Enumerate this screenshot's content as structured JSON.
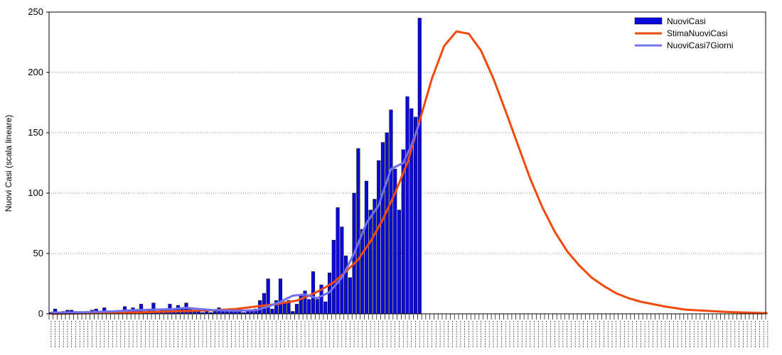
{
  "chart_data": {
    "type": "bar",
    "title": "",
    "ylabel": "Nuovi Casi (scala lineare)",
    "xlabel": "",
    "ylim": [
      0,
      250
    ],
    "yticks": [
      0,
      50,
      100,
      150,
      200,
      250
    ],
    "grid": true,
    "legend_position": "top-right",
    "x_count": 175,
    "legend": [
      {
        "name": "NuoviCasi",
        "color": "#0a0adc",
        "kind": "bar"
      },
      {
        "name": "StimaNuoviCasi",
        "color": "#f04a0e",
        "kind": "line"
      },
      {
        "name": "NuoviCasi7Giorni",
        "color": "#7070f0",
        "kind": "line"
      }
    ],
    "series": [
      {
        "name": "NuoviCasi",
        "type": "bar",
        "color": "#0a0adc",
        "values": [
          1,
          4,
          1,
          2,
          3,
          3,
          2,
          2,
          1,
          1,
          3,
          4,
          2,
          5,
          1,
          1,
          2,
          3,
          6,
          3,
          5,
          3,
          8,
          2,
          4,
          9,
          2,
          4,
          3,
          8,
          4,
          7,
          4,
          9,
          4,
          2,
          3,
          1,
          2,
          1,
          2,
          5,
          4,
          3,
          2,
          2,
          3,
          1,
          2,
          3,
          4,
          11,
          17,
          29,
          4,
          11,
          29,
          10,
          11,
          2,
          8,
          16,
          19,
          12,
          35,
          12,
          24,
          10,
          34,
          61,
          88,
          72,
          48,
          30,
          100,
          137,
          70,
          110,
          86,
          95,
          127,
          142,
          150,
          169,
          120,
          86,
          136,
          180,
          170,
          163,
          245
        ]
      },
      {
        "name": "StimaNuoviCasi",
        "type": "line",
        "color": "#f04a0e",
        "points": [
          [
            0,
            0
          ],
          [
            10,
            0.5
          ],
          [
            20,
            1
          ],
          [
            28,
            1.8
          ],
          [
            35,
            2.5
          ],
          [
            40,
            3
          ],
          [
            45,
            4
          ],
          [
            50,
            6
          ],
          [
            55,
            8
          ],
          [
            60,
            11
          ],
          [
            63,
            15
          ],
          [
            66,
            20
          ],
          [
            69,
            26
          ],
          [
            72,
            35
          ],
          [
            75,
            45
          ],
          [
            78,
            60
          ],
          [
            81,
            78
          ],
          [
            84,
            100
          ],
          [
            87,
            125
          ],
          [
            90,
            160
          ],
          [
            93,
            195
          ],
          [
            96,
            222
          ],
          [
            99,
            234
          ],
          [
            102,
            232
          ],
          [
            105,
            218
          ],
          [
            108,
            195
          ],
          [
            111,
            168
          ],
          [
            114,
            140
          ],
          [
            117,
            112
          ],
          [
            120,
            88
          ],
          [
            123,
            68
          ],
          [
            126,
            52
          ],
          [
            129,
            40
          ],
          [
            132,
            30
          ],
          [
            135,
            23
          ],
          [
            138,
            17
          ],
          [
            141,
            13
          ],
          [
            144,
            10
          ],
          [
            147,
            8
          ],
          [
            150,
            6
          ],
          [
            155,
            3.5
          ],
          [
            160,
            2.5
          ],
          [
            165,
            1.5
          ],
          [
            170,
            1
          ],
          [
            175,
            0.5
          ]
        ]
      },
      {
        "name": "NuoviCasi7Giorni",
        "type": "line",
        "color": "#7070f0",
        "points": [
          [
            0,
            1
          ],
          [
            5,
            1
          ],
          [
            10,
            1.5
          ],
          [
            15,
            2
          ],
          [
            20,
            3
          ],
          [
            25,
            3.5
          ],
          [
            30,
            4
          ],
          [
            33,
            5
          ],
          [
            36,
            4
          ],
          [
            40,
            3
          ],
          [
            45,
            2.5
          ],
          [
            50,
            3
          ],
          [
            53,
            6
          ],
          [
            56,
            10
          ],
          [
            59,
            15
          ],
          [
            62,
            16
          ],
          [
            65,
            13
          ],
          [
            68,
            18
          ],
          [
            71,
            30
          ],
          [
            74,
            50
          ],
          [
            77,
            75
          ],
          [
            80,
            90
          ],
          [
            83,
            120
          ],
          [
            86,
            125
          ],
          [
            88,
            140
          ],
          [
            90,
            158
          ]
        ]
      }
    ]
  }
}
